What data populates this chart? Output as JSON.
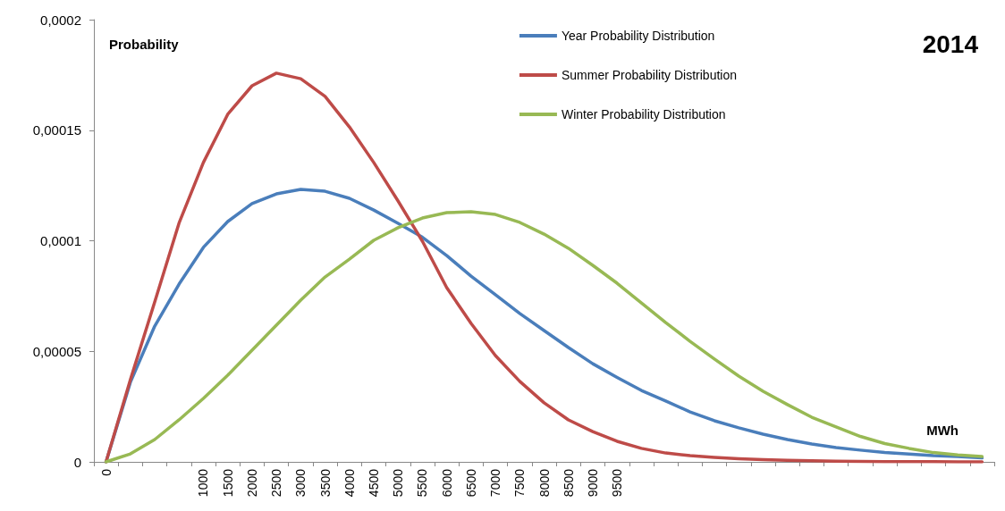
{
  "chart_data": {
    "type": "line",
    "title": "2014",
    "xlabel": "MWh",
    "ylabel": "Probability",
    "categories": [
      "0",
      null,
      null,
      null,
      "1000",
      "1500",
      "2000",
      "2500",
      "3000",
      "3500",
      "4000",
      "4500",
      "5000",
      "5500",
      "6000",
      "6500",
      "7000",
      "7500",
      "8000",
      "8500",
      "9000",
      "9500",
      null,
      null,
      null,
      null,
      null,
      null,
      null,
      null,
      null,
      null,
      null,
      null,
      null,
      null,
      null
    ],
    "series": [
      {
        "name": "Year Probability Distribution",
        "color": "#4a7ebb",
        "values": [
          0,
          3.6e-05,
          6.14e-05,
          8.04e-05,
          9.7e-05,
          0.0001087,
          0.0001168,
          0.0001212,
          0.0001232,
          0.0001224,
          0.0001192,
          0.0001139,
          0.0001079,
          0.0001016,
          9.33e-05,
          8.4e-05,
          7.56e-05,
          6.71e-05,
          5.94e-05,
          5.17e-05,
          4.44e-05,
          3.82e-05,
          3.23e-05,
          2.75e-05,
          2.26e-05,
          1.86e-05,
          1.54e-05,
          1.25e-05,
          1.01e-05,
          8.1e-06,
          6.5e-06,
          5.3e-06,
          4.2e-06,
          3.5e-06,
          2.8e-06,
          2.4e-06,
          1.8e-06
        ]
      },
      {
        "name": "Summer Probability Distribution",
        "color": "#be4b48",
        "values": [
          0,
          3.72e-05,
          7.23e-05,
          0.000108,
          0.0001354,
          0.0001572,
          0.0001701,
          0.0001758,
          0.0001733,
          0.0001653,
          0.0001515,
          0.0001354,
          0.000118,
          9.98e-05,
          7.88e-05,
          6.26e-05,
          4.81e-05,
          3.64e-05,
          2.67e-05,
          1.9e-05,
          1.37e-05,
          9.3e-06,
          6.1e-06,
          4e-06,
          2.8e-06,
          2e-06,
          1.4e-06,
          1e-06,
          7e-07,
          5e-07,
          3e-07,
          2e-07,
          1e-07,
          1e-07,
          1e-07,
          0,
          0
        ]
      },
      {
        "name": "Winter Probability Distribution",
        "color": "#98b954",
        "values": [
          0,
          3.6e-06,
          1.01e-05,
          1.9e-05,
          2.87e-05,
          3.92e-05,
          5.05e-05,
          6.18e-05,
          7.31e-05,
          8.36e-05,
          9.17e-05,
          0.0001002,
          0.0001059,
          0.0001103,
          0.0001127,
          0.0001131,
          0.0001119,
          0.0001083,
          0.000103,
          9.66e-05,
          8.89e-05,
          8.08e-05,
          7.19e-05,
          6.3e-05,
          5.45e-05,
          4.65e-05,
          3.88e-05,
          3.19e-05,
          2.59e-05,
          2.02e-05,
          1.58e-05,
          1.15e-05,
          8.3e-06,
          6.1e-06,
          4.2e-06,
          3.1e-06,
          2.4e-06
        ]
      }
    ],
    "ylim": [
      0,
      0.0002
    ],
    "yticks": [
      {
        "value": 0,
        "label": "0"
      },
      {
        "value": 5e-05,
        "label": "0,00005"
      },
      {
        "value": 0.0001,
        "label": "0,0001"
      },
      {
        "value": 0.00015,
        "label": "0,00015"
      },
      {
        "value": 0.0002,
        "label": "0,0002"
      }
    ],
    "grid": false,
    "legend": "top right",
    "marker": "none",
    "line_style": "solid"
  }
}
